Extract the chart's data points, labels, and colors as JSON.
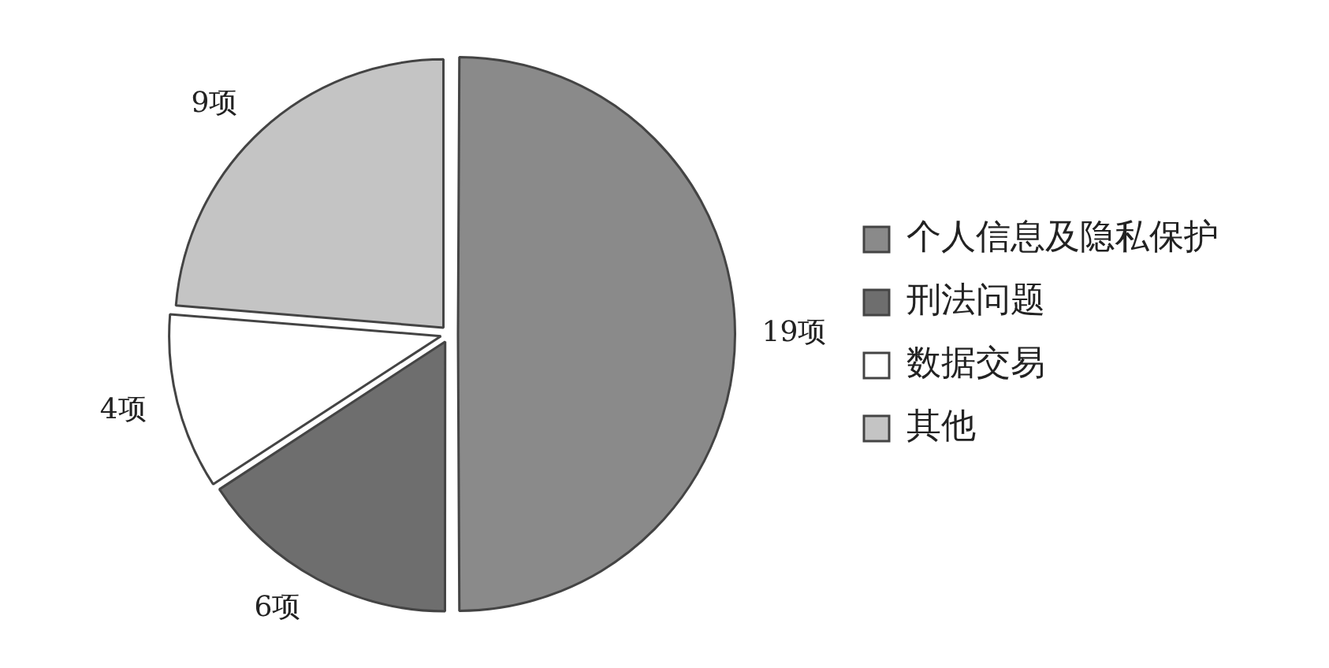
{
  "chart_data": {
    "type": "pie",
    "categories": [
      "个人信息及隐私保护",
      "刑法问题",
      "数据交易",
      "其他"
    ],
    "values": [
      19,
      6,
      4,
      9
    ],
    "colors": [
      "#8a8a8a",
      "#6e6e6e",
      "#ffffff",
      "#c4c4c4"
    ],
    "value_labels": [
      "19项",
      "6项",
      "4项",
      "9项"
    ],
    "legend": "right"
  }
}
